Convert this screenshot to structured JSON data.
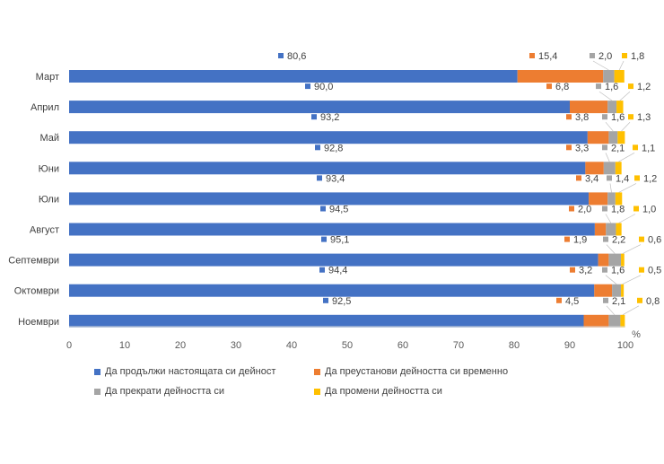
{
  "chart_data": {
    "type": "bar",
    "orientation": "horizontal",
    "stacked": true,
    "categories": [
      "Март",
      "Април",
      "Май",
      "Юни",
      "Юли",
      "Август",
      "Септември",
      "Октомври",
      "Ноември"
    ],
    "series": [
      {
        "name": "Да продължи настоящата си дейност",
        "color": "#4472C4",
        "values": [
          80.6,
          90.0,
          93.2,
          92.8,
          93.4,
          94.5,
          95.1,
          94.4,
          92.5
        ],
        "labels": [
          "80,6",
          "90,0",
          "93,2",
          "92,8",
          "93,4",
          "94,5",
          "95,1",
          "94,4",
          "92,5"
        ]
      },
      {
        "name": "Да преустанови дейността си временно",
        "color": "#ED7D31",
        "values": [
          15.4,
          6.8,
          3.8,
          3.3,
          3.4,
          2.0,
          1.9,
          3.2,
          4.5
        ],
        "labels": [
          "15,4",
          "6,8",
          "3,8",
          "3,3",
          "3,4",
          "2,0",
          "1,9",
          "3,2",
          "4,5"
        ]
      },
      {
        "name": "Да прекрати дейността си",
        "color": "#A5A5A5",
        "values": [
          2.0,
          1.6,
          1.6,
          2.1,
          1.4,
          1.8,
          2.2,
          1.6,
          2.1
        ],
        "labels": [
          "2,0",
          "1,6",
          "1,6",
          "2,1",
          "1,4",
          "1,8",
          "2,2",
          "1,6",
          "2,1"
        ]
      },
      {
        "name": "Да промени дейността си",
        "color": "#FFC000",
        "values": [
          1.8,
          1.2,
          1.3,
          1.1,
          1.2,
          1.0,
          0.6,
          0.5,
          0.8
        ],
        "labels": [
          "1,8",
          "1,2",
          "1,3",
          "1,1",
          "1,2",
          "1,0",
          "0,6",
          "0,5",
          "0,8"
        ]
      }
    ],
    "xlim": [
      0,
      100
    ],
    "xticks": [
      0,
      10,
      20,
      30,
      40,
      50,
      60,
      70,
      80,
      90,
      100
    ],
    "xunit": "%",
    "legend_position": "bottom",
    "grid": false
  }
}
